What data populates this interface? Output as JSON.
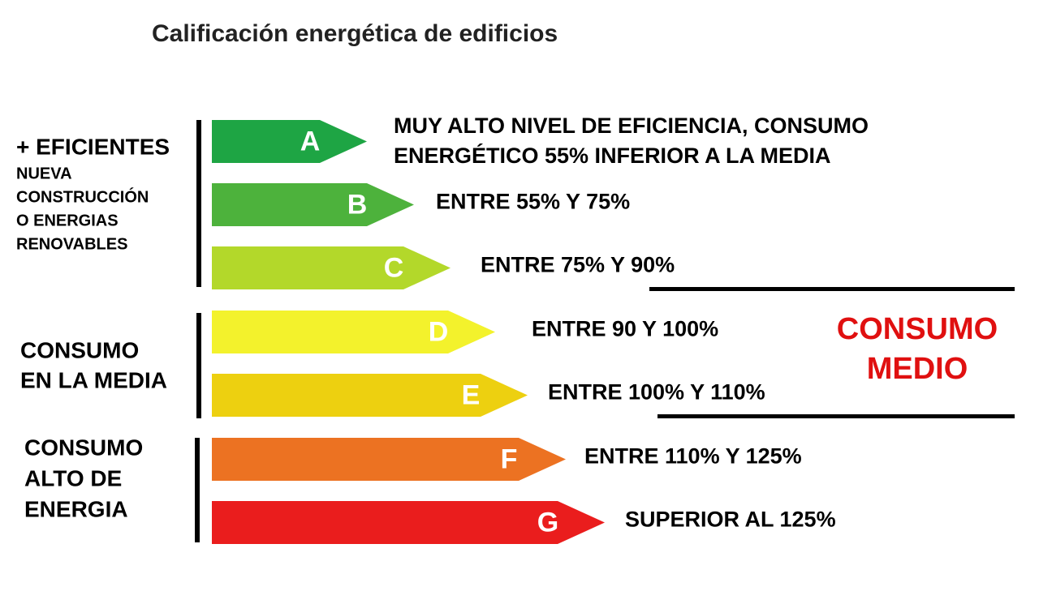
{
  "title": "Calificación energética de edificios",
  "groups": [
    {
      "heading": "+ EFICIENTES",
      "lines": [
        "NUEVA",
        "CONSTRUCCIÓN",
        "O ENERGIAS",
        "RENOVABLES"
      ]
    },
    {
      "lines": [
        "CONSUMO",
        "EN LA MEDIA"
      ]
    },
    {
      "lines": [
        "CONSUMO",
        "ALTO DE",
        "ENERGIA"
      ]
    }
  ],
  "ratings": [
    {
      "letter": "A",
      "description": [
        "MUY ALTO NIVEL DE EFICIENCIA, CONSUMO",
        "ENERGÉTICO 55% INFERIOR A LA MEDIA"
      ]
    },
    {
      "letter": "B",
      "description": [
        "ENTRE 55% Y 75%"
      ]
    },
    {
      "letter": "C",
      "description": [
        "ENTRE 75% Y 90%"
      ]
    },
    {
      "letter": "D",
      "description": [
        "ENTRE 90 Y 100%"
      ]
    },
    {
      "letter": "E",
      "description": [
        "ENTRE 100% Y 110%"
      ]
    },
    {
      "letter": "F",
      "description": [
        "ENTRE 110% Y 125%"
      ]
    },
    {
      "letter": "G",
      "description": [
        "SUPERIOR AL 125%"
      ]
    }
  ],
  "average_label": [
    "CONSUMO",
    "MEDIO"
  ]
}
